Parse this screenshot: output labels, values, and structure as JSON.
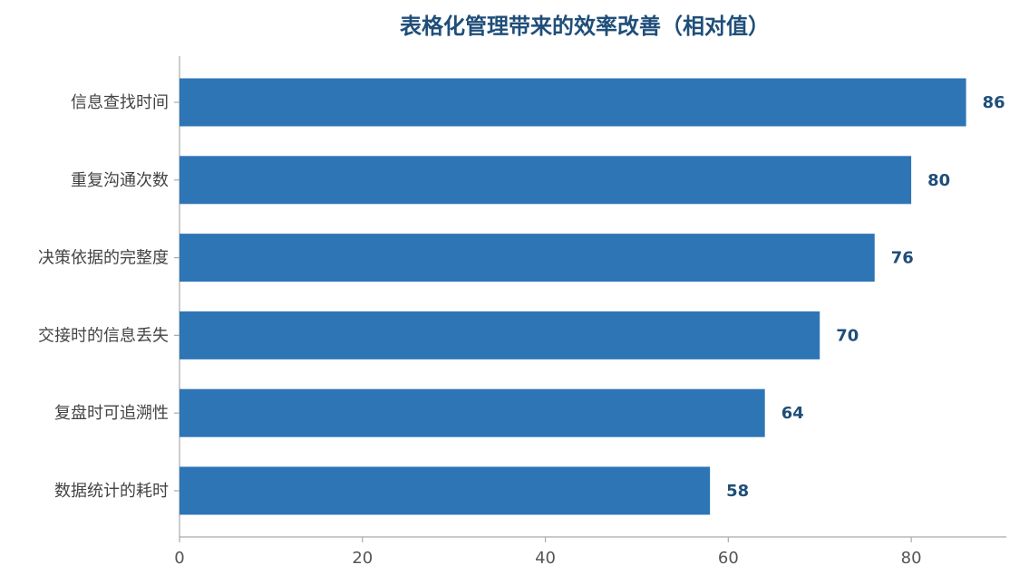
{
  "chart_data": {
    "type": "barh",
    "title": "表格化管理带来的效率改善（相对值）",
    "categories": [
      "信息查找时间",
      "重复沟通次数",
      "决策依据的完整度",
      "交接时的信息丢失",
      "复盘时可追溯性",
      "数据统计的耗时"
    ],
    "values": [
      86,
      80,
      76,
      70,
      64,
      58
    ],
    "color": "#2e75b6",
    "xlim": [
      0,
      90
    ],
    "xticks": [
      0,
      20,
      40,
      60,
      80
    ]
  }
}
